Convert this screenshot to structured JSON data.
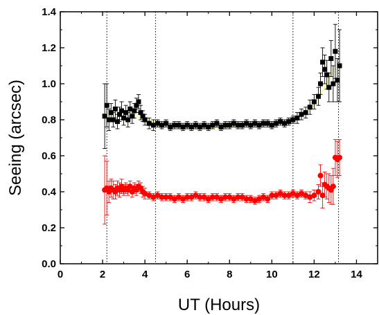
{
  "chart_data": {
    "type": "scatter",
    "title": "",
    "xlabel": "UT (Hours)",
    "ylabel": "Seeing (arcsec)",
    "xlim": [
      0,
      15
    ],
    "ylim": [
      0,
      1.4
    ],
    "x_ticks": [
      0,
      2,
      4,
      6,
      8,
      10,
      12,
      14
    ],
    "x_tick_labels": [
      "0",
      "2",
      "4",
      "6",
      "8",
      "10",
      "12",
      "14"
    ],
    "y_ticks": [
      0,
      0.2,
      0.4,
      0.6,
      0.8,
      1.0,
      1.2,
      1.4
    ],
    "y_tick_labels": [
      "0.0",
      "0.2",
      "0.4",
      "0.6",
      "0.8",
      "1.0",
      "1.2",
      "1.4"
    ],
    "vertical_lines": [
      2.2,
      4.5,
      11.0,
      13.15
    ],
    "grid": false,
    "legend": "none",
    "series": [
      {
        "marker": "square",
        "color": "#000000",
        "x": [
          2.1,
          2.2,
          2.3,
          2.4,
          2.5,
          2.6,
          2.7,
          2.8,
          2.9,
          3.0,
          3.1,
          3.2,
          3.3,
          3.4,
          3.5,
          3.6,
          3.7,
          3.8,
          3.9,
          4.0,
          4.2,
          4.4,
          4.6,
          4.8,
          5.0,
          5.2,
          5.4,
          5.6,
          5.8,
          6.0,
          6.2,
          6.4,
          6.6,
          6.8,
          7.0,
          7.2,
          7.4,
          7.6,
          7.8,
          8.0,
          8.2,
          8.4,
          8.6,
          8.8,
          9.0,
          9.2,
          9.4,
          9.6,
          9.8,
          10.0,
          10.2,
          10.4,
          10.6,
          10.8,
          11.0,
          11.2,
          11.4,
          11.6,
          11.8,
          12.0,
          12.2,
          12.3,
          12.4,
          12.5,
          12.6,
          12.7,
          12.8,
          12.9,
          13.0,
          13.1,
          13.2
        ],
        "y": [
          0.82,
          0.88,
          0.8,
          0.84,
          0.8,
          0.86,
          0.79,
          0.83,
          0.85,
          0.81,
          0.84,
          0.8,
          0.86,
          0.82,
          0.85,
          0.88,
          0.9,
          0.84,
          0.82,
          0.8,
          0.78,
          0.77,
          0.78,
          0.77,
          0.78,
          0.76,
          0.77,
          0.77,
          0.76,
          0.77,
          0.76,
          0.77,
          0.76,
          0.77,
          0.76,
          0.77,
          0.78,
          0.76,
          0.77,
          0.77,
          0.78,
          0.77,
          0.77,
          0.78,
          0.77,
          0.78,
          0.77,
          0.78,
          0.78,
          0.77,
          0.78,
          0.79,
          0.78,
          0.79,
          0.8,
          0.81,
          0.83,
          0.84,
          0.87,
          0.9,
          0.93,
          1.0,
          1.12,
          1.08,
          1.05,
          0.98,
          1.14,
          1.0,
          1.18,
          1.02,
          1.1
        ],
        "err": [
          0.18,
          0.12,
          0.06,
          0.05,
          0.04,
          0.05,
          0.04,
          0.04,
          0.05,
          0.04,
          0.04,
          0.04,
          0.04,
          0.04,
          0.04,
          0.04,
          0.04,
          0.04,
          0.03,
          0.03,
          0.03,
          0.03,
          0.02,
          0.02,
          0.02,
          0.02,
          0.02,
          0.02,
          0.02,
          0.02,
          0.02,
          0.02,
          0.02,
          0.02,
          0.02,
          0.02,
          0.02,
          0.02,
          0.02,
          0.02,
          0.02,
          0.02,
          0.02,
          0.02,
          0.02,
          0.02,
          0.02,
          0.02,
          0.02,
          0.02,
          0.02,
          0.02,
          0.02,
          0.02,
          0.02,
          0.03,
          0.03,
          0.03,
          0.04,
          0.04,
          0.05,
          0.06,
          0.08,
          0.08,
          0.08,
          0.08,
          0.1,
          0.1,
          0.15,
          0.12,
          0.2
        ]
      },
      {
        "marker": "circle",
        "color": "#ff0000",
        "x": [
          2.1,
          2.2,
          2.3,
          2.4,
          2.5,
          2.6,
          2.7,
          2.8,
          2.9,
          3.0,
          3.1,
          3.2,
          3.3,
          3.4,
          3.5,
          3.6,
          3.7,
          3.8,
          3.9,
          4.0,
          4.2,
          4.4,
          4.6,
          4.8,
          5.0,
          5.2,
          5.4,
          5.6,
          5.8,
          6.0,
          6.2,
          6.4,
          6.6,
          6.8,
          7.0,
          7.2,
          7.4,
          7.6,
          7.8,
          8.0,
          8.2,
          8.4,
          8.6,
          8.8,
          9.0,
          9.2,
          9.4,
          9.6,
          9.8,
          10.0,
          10.2,
          10.4,
          10.6,
          10.8,
          11.0,
          11.2,
          11.4,
          11.6,
          11.8,
          12.0,
          12.2,
          12.3,
          12.4,
          12.5,
          12.6,
          12.7,
          12.8,
          12.9,
          13.0,
          13.1,
          13.2
        ],
        "y": [
          0.41,
          0.42,
          0.4,
          0.42,
          0.41,
          0.4,
          0.42,
          0.41,
          0.43,
          0.41,
          0.42,
          0.41,
          0.43,
          0.4,
          0.42,
          0.41,
          0.43,
          0.42,
          0.4,
          0.39,
          0.38,
          0.37,
          0.38,
          0.37,
          0.37,
          0.37,
          0.36,
          0.37,
          0.36,
          0.37,
          0.37,
          0.38,
          0.37,
          0.37,
          0.36,
          0.37,
          0.37,
          0.36,
          0.37,
          0.37,
          0.36,
          0.37,
          0.37,
          0.36,
          0.36,
          0.35,
          0.36,
          0.37,
          0.36,
          0.38,
          0.38,
          0.39,
          0.38,
          0.38,
          0.39,
          0.38,
          0.39,
          0.38,
          0.37,
          0.38,
          0.4,
          0.49,
          0.38,
          0.44,
          0.43,
          0.42,
          0.41,
          0.43,
          0.59,
          0.58,
          0.59
        ],
        "err": [
          0.19,
          0.15,
          0.06,
          0.05,
          0.05,
          0.04,
          0.04,
          0.04,
          0.04,
          0.03,
          0.03,
          0.03,
          0.03,
          0.03,
          0.03,
          0.03,
          0.03,
          0.03,
          0.03,
          0.03,
          0.02,
          0.02,
          0.02,
          0.02,
          0.02,
          0.02,
          0.02,
          0.02,
          0.02,
          0.02,
          0.02,
          0.02,
          0.02,
          0.02,
          0.02,
          0.02,
          0.02,
          0.02,
          0.02,
          0.02,
          0.02,
          0.02,
          0.02,
          0.02,
          0.02,
          0.02,
          0.02,
          0.02,
          0.02,
          0.02,
          0.02,
          0.02,
          0.02,
          0.02,
          0.02,
          0.02,
          0.02,
          0.02,
          0.03,
          0.03,
          0.04,
          0.06,
          0.07,
          0.07,
          0.07,
          0.08,
          0.08,
          0.1,
          0.1,
          0.1,
          0.1
        ]
      },
      {
        "marker": "none",
        "line": "fit",
        "color": "#ffff88",
        "x": [
          2.2,
          2.8,
          3.4,
          4.0,
          4.6,
          5.2,
          5.8,
          6.4,
          7.0,
          7.6,
          8.2,
          8.8,
          9.4,
          10.0,
          10.6,
          11.0,
          11.4,
          11.8,
          12.2,
          12.6,
          13.0
        ],
        "y": [
          0.83,
          0.84,
          0.83,
          0.8,
          0.78,
          0.765,
          0.76,
          0.755,
          0.757,
          0.76,
          0.765,
          0.77,
          0.775,
          0.78,
          0.79,
          0.8,
          0.825,
          0.86,
          0.92,
          1.0,
          1.09
        ]
      }
    ]
  }
}
